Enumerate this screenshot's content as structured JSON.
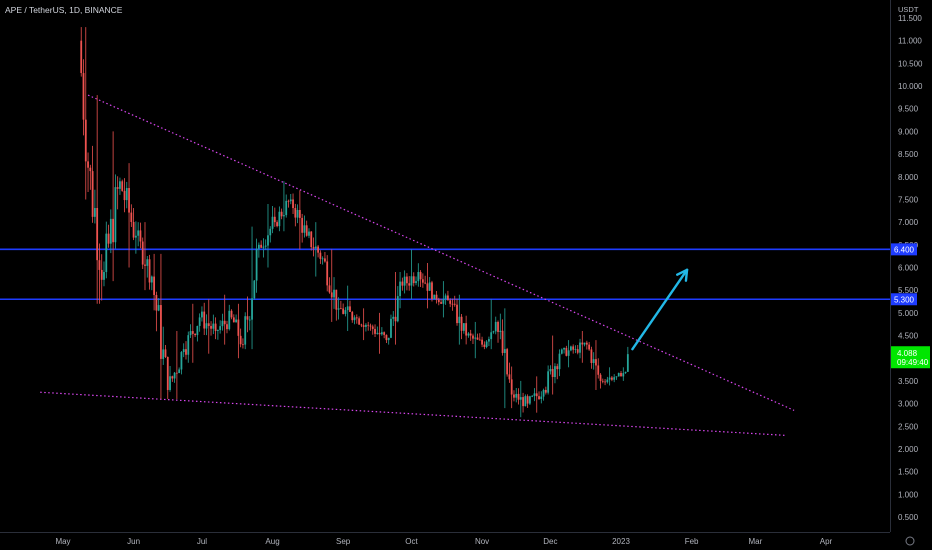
{
  "header": {
    "symbol_line": "APE / TetherUS, 1D, BINANCE"
  },
  "axis": {
    "unit": "USDT"
  },
  "colors": {
    "up": "#26a69a",
    "down": "#ef5350",
    "hline": "#1e3cff",
    "trend": "#d946ef",
    "arrow": "#22b8e6",
    "current_bg": "#00e600"
  },
  "current": {
    "price": "4.088",
    "countdown": "09:49:40"
  },
  "chart_data": {
    "type": "candlestick",
    "title": "",
    "x_ticks": [
      "May",
      "Jun",
      "Jul",
      "Aug",
      "Sep",
      "Oct",
      "Nov",
      "Dec",
      "2023",
      "Feb",
      "Mar",
      "Apr"
    ],
    "y_ticks": [
      "0.500",
      "1.000",
      "1.500",
      "2.000",
      "2.500",
      "3.000",
      "3.500",
      "4.000",
      "4.500",
      "5.000",
      "5.500",
      "6.000",
      "6.500",
      "7.000",
      "7.500",
      "8.000",
      "8.500",
      "9.000",
      "9.500",
      "10.000",
      "10.500",
      "11.000",
      "11.500"
    ],
    "ylim": [
      0.2,
      12.0
    ],
    "horizontal_lines": [
      {
        "label": "6.400",
        "value": 6.4
      },
      {
        "label": "5.300",
        "value": 5.3
      }
    ],
    "trendlines": [
      {
        "name": "upper",
        "from": {
          "date": "2022-05-12",
          "price": 9.8
        },
        "to": {
          "date": "2023-03-18",
          "price": 2.85
        }
      },
      {
        "name": "lower",
        "from": {
          "date": "2022-04-21",
          "price": 3.25
        },
        "to": {
          "date": "2023-03-14",
          "price": 2.3
        }
      }
    ],
    "projection_arrow": {
      "from": {
        "date": "2023-01-06",
        "price": 4.2
      },
      "to": {
        "date": "2023-01-30",
        "price": 5.95
      }
    },
    "candles": [
      {
        "date": "2022-05-09",
        "open": 11.0,
        "close": 8.2,
        "high": 11.3,
        "low": 7.5
      },
      {
        "date": "2022-05-13",
        "open": 8.2,
        "close": 5.9,
        "high": 9.8,
        "low": 5.2
      },
      {
        "date": "2022-05-20",
        "open": 5.9,
        "close": 7.9,
        "high": 9.0,
        "low": 5.7
      },
      {
        "date": "2022-05-27",
        "open": 7.9,
        "close": 6.7,
        "high": 8.3,
        "low": 6.0
      },
      {
        "date": "2022-06-03",
        "open": 6.7,
        "close": 5.8,
        "high": 7.0,
        "low": 5.5
      },
      {
        "date": "2022-06-10",
        "open": 5.8,
        "close": 3.3,
        "high": 6.3,
        "low": 3.1
      },
      {
        "date": "2022-06-17",
        "open": 3.3,
        "close": 4.2,
        "high": 4.6,
        "low": 3.1
      },
      {
        "date": "2022-06-24",
        "open": 4.2,
        "close": 4.9,
        "high": 5.2,
        "low": 3.9
      },
      {
        "date": "2022-07-01",
        "open": 4.9,
        "close": 4.6,
        "high": 5.3,
        "low": 4.1
      },
      {
        "date": "2022-07-08",
        "open": 4.6,
        "close": 4.9,
        "high": 5.4,
        "low": 4.3
      },
      {
        "date": "2022-07-15",
        "open": 4.9,
        "close": 4.3,
        "high": 5.2,
        "low": 4.0
      },
      {
        "date": "2022-07-20",
        "open": 4.3,
        "close": 6.5,
        "high": 6.9,
        "low": 4.2
      },
      {
        "date": "2022-07-27",
        "open": 6.5,
        "close": 7.0,
        "high": 7.4,
        "low": 6.0
      },
      {
        "date": "2022-08-03",
        "open": 7.0,
        "close": 7.5,
        "high": 7.9,
        "low": 6.8
      },
      {
        "date": "2022-08-10",
        "open": 7.5,
        "close": 6.7,
        "high": 7.7,
        "low": 6.4
      },
      {
        "date": "2022-08-17",
        "open": 6.7,
        "close": 6.2,
        "high": 7.0,
        "low": 5.8
      },
      {
        "date": "2022-08-24",
        "open": 6.2,
        "close": 5.1,
        "high": 6.4,
        "low": 4.8
      },
      {
        "date": "2022-08-31",
        "open": 5.1,
        "close": 4.9,
        "high": 5.6,
        "low": 4.6
      },
      {
        "date": "2022-09-07",
        "open": 4.9,
        "close": 4.7,
        "high": 5.1,
        "low": 4.4
      },
      {
        "date": "2022-09-14",
        "open": 4.7,
        "close": 4.4,
        "high": 5.0,
        "low": 4.1
      },
      {
        "date": "2022-09-21",
        "open": 4.4,
        "close": 5.6,
        "high": 5.9,
        "low": 4.3
      },
      {
        "date": "2022-09-28",
        "open": 5.6,
        "close": 5.9,
        "high": 6.4,
        "low": 5.3
      },
      {
        "date": "2022-10-05",
        "open": 5.9,
        "close": 5.4,
        "high": 6.1,
        "low": 5.1
      },
      {
        "date": "2022-10-12",
        "open": 5.4,
        "close": 5.2,
        "high": 5.7,
        "low": 4.9
      },
      {
        "date": "2022-10-19",
        "open": 5.2,
        "close": 4.5,
        "high": 5.4,
        "low": 4.3
      },
      {
        "date": "2022-10-26",
        "open": 4.5,
        "close": 4.3,
        "high": 4.8,
        "low": 4.0
      },
      {
        "date": "2022-11-02",
        "open": 4.3,
        "close": 4.8,
        "high": 5.3,
        "low": 4.2
      },
      {
        "date": "2022-11-08",
        "open": 4.8,
        "close": 3.2,
        "high": 5.1,
        "low": 2.9
      },
      {
        "date": "2022-11-15",
        "open": 3.2,
        "close": 3.0,
        "high": 3.5,
        "low": 2.7
      },
      {
        "date": "2022-11-22",
        "open": 3.0,
        "close": 3.3,
        "high": 3.6,
        "low": 2.8
      },
      {
        "date": "2022-11-29",
        "open": 3.3,
        "close": 4.1,
        "high": 4.5,
        "low": 3.2
      },
      {
        "date": "2022-12-06",
        "open": 4.1,
        "close": 4.2,
        "high": 4.4,
        "low": 3.8
      },
      {
        "date": "2022-12-13",
        "open": 4.2,
        "close": 4.3,
        "high": 4.6,
        "low": 3.9
      },
      {
        "date": "2022-12-18",
        "open": 4.3,
        "close": 3.5,
        "high": 4.4,
        "low": 3.3
      },
      {
        "date": "2022-12-24",
        "open": 3.5,
        "close": 3.6,
        "high": 3.8,
        "low": 3.4
      },
      {
        "date": "2022-12-31",
        "open": 3.6,
        "close": 3.7,
        "high": 3.8,
        "low": 3.5
      },
      {
        "date": "2023-01-04",
        "open": 3.7,
        "close": 4.09,
        "high": 4.25,
        "low": 3.7
      }
    ]
  }
}
